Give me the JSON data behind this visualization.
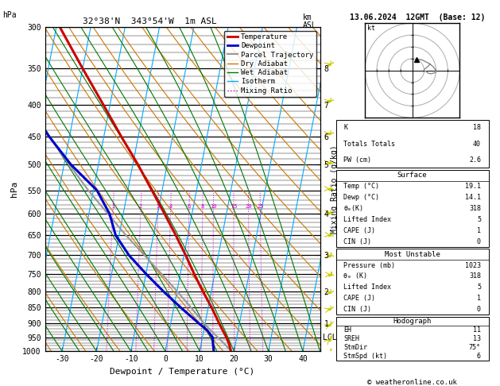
{
  "title_left": "32°38'N  343°54'W  1m ASL",
  "title_right": "13.06.2024  12GMT  (Base: 12)",
  "xlabel": "Dewpoint / Temperature (°C)",
  "ylabel_left": "hPa",
  "ylabel_right_mixing": "Mixing Ratio (g/kg)",
  "copyright": "© weatheronline.co.uk",
  "pressure_levels": [
    300,
    350,
    400,
    450,
    500,
    550,
    600,
    650,
    700,
    750,
    800,
    850,
    900,
    950,
    1000
  ],
  "pressure_minor": [
    310,
    320,
    330,
    340,
    360,
    370,
    380,
    390,
    410,
    420,
    430,
    440,
    460,
    470,
    480,
    490,
    510,
    520,
    530,
    540,
    560,
    570,
    580,
    590,
    610,
    620,
    630,
    640,
    660,
    670,
    680,
    690,
    710,
    720,
    730,
    740,
    760,
    770,
    780,
    790,
    810,
    820,
    830,
    840,
    860,
    870,
    880,
    890,
    910,
    920,
    930,
    940,
    960,
    970,
    980,
    990
  ],
  "temp_ticks": [
    -30,
    -20,
    -10,
    0,
    10,
    20,
    30,
    40
  ],
  "km_ticks": [
    1,
    2,
    3,
    4,
    5,
    6,
    7,
    8
  ],
  "km_pressures": [
    900,
    800,
    700,
    600,
    500,
    450,
    400,
    350
  ],
  "lcl_pressure": 950,
  "mixing_ratio_values": [
    1,
    2,
    3,
    4,
    6,
    8,
    10,
    15,
    20,
    25
  ],
  "mixing_ratio_label_pressure": 590,
  "isotherm_color": "#00aaff",
  "dry_adiabat_color": "#cc7700",
  "wet_adiabat_color": "#007700",
  "mixing_ratio_color": "#cc00cc",
  "temp_color": "#cc0000",
  "dewp_color": "#0000cc",
  "parcel_color": "#999999",
  "wind_color": "#cccc00",
  "legend_temp": "Temperature",
  "legend_dewp": "Dewpoint",
  "legend_parcel": "Parcel Trajectory",
  "legend_dry": "Dry Adiabat",
  "legend_wet": "Wet Adiabat",
  "legend_isotherm": "Isotherm",
  "legend_mixing": "Mixing Ratio",
  "temp_profile": {
    "pressure": [
      1000,
      975,
      950,
      925,
      900,
      850,
      800,
      750,
      700,
      650,
      600,
      550,
      500,
      450,
      400,
      350,
      300
    ],
    "temperature": [
      19.1,
      18.2,
      17.0,
      15.5,
      14.0,
      11.0,
      7.5,
      4.0,
      0.5,
      -3.5,
      -8.0,
      -13.0,
      -18.5,
      -25.0,
      -32.0,
      -40.0,
      -49.0
    ]
  },
  "dewp_profile": {
    "pressure": [
      1000,
      975,
      950,
      925,
      900,
      850,
      800,
      750,
      700,
      650,
      600,
      550,
      500,
      450,
      400,
      350,
      300
    ],
    "temperature": [
      14.1,
      13.5,
      13.0,
      11.0,
      8.0,
      2.0,
      -4.0,
      -10.0,
      -16.0,
      -21.0,
      -24.0,
      -29.0,
      -38.0,
      -46.0,
      -54.0,
      -62.0,
      -68.0
    ]
  },
  "parcel_profile": {
    "pressure": [
      1000,
      975,
      950,
      925,
      900,
      850,
      800,
      750,
      700,
      650,
      600,
      550,
      500,
      450,
      400,
      350,
      300
    ],
    "temperature": [
      19.1,
      17.0,
      14.5,
      12.0,
      9.5,
      5.0,
      0.0,
      -5.5,
      -11.5,
      -18.0,
      -24.5,
      -31.5,
      -38.5,
      -46.0,
      -53.5,
      -61.0,
      -68.5
    ]
  },
  "wind_pressures": [
    1000,
    950,
    900,
    850,
    800,
    750,
    700,
    650,
    600,
    550,
    500,
    450,
    400,
    350,
    300
  ],
  "wind_speeds_kt": [
    5,
    6,
    7,
    8,
    9,
    10,
    10,
    8,
    7,
    6,
    5,
    5,
    6,
    7,
    8
  ],
  "wind_dirs_deg": [
    200,
    220,
    240,
    250,
    260,
    270,
    275,
    280,
    280,
    275,
    270,
    265,
    260,
    255,
    250
  ],
  "stats": {
    "K": 18,
    "Totals_Totals": 40,
    "PW_cm": 2.6,
    "Surface_Temp": 19.1,
    "Surface_Dewp": 14.1,
    "Surface_theta_e": 318,
    "Surface_LI": 5,
    "Surface_CAPE": 1,
    "Surface_CIN": 0,
    "MU_Pressure": 1023,
    "MU_theta_e": 318,
    "MU_LI": 5,
    "MU_CAPE": 1,
    "MU_CIN": 0,
    "EH": 11,
    "SREH": 13,
    "StmDir": 75,
    "StmSpd_kt": 6
  }
}
